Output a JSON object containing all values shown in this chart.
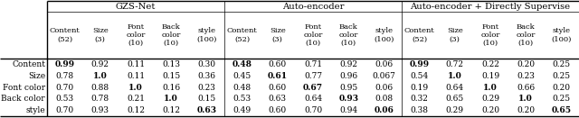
{
  "title_row": [
    "GZS-Net",
    "Auto-encoder",
    "Auto-encoder + Directly Supervise"
  ],
  "header_cols": [
    [
      "Content\n(52)",
      "Size\n(3)",
      "Font\ncolor\n(10)",
      "Back\ncolor\n(10)",
      "style\n(100)"
    ],
    [
      "Content\n(52)",
      "Size\n(3)",
      "Font\ncolor\n(10)",
      "Back\ncolor\n(10)",
      "style\n(100)"
    ],
    [
      "Content\n(52)",
      "Size\n(3)",
      "Font\ncolor\n(10)",
      "Back\ncolor\n(10)",
      "style\n(100)"
    ]
  ],
  "row_labels": [
    "Content",
    "Size",
    "Font color",
    "Back color",
    "style"
  ],
  "data": [
    [
      [
        "0.99",
        "0.92",
        "0.11",
        "0.13",
        "0.30"
      ],
      [
        "0.48",
        "0.60",
        "0.71",
        "0.92",
        "0.06"
      ],
      [
        "0.99",
        "0.72",
        "0.22",
        "0.20",
        "0.25"
      ]
    ],
    [
      [
        "0.78",
        "1.0",
        "0.11",
        "0.15",
        "0.36"
      ],
      [
        "0.45",
        "0.61",
        "0.77",
        "0.96",
        "0.067"
      ],
      [
        "0.54",
        "1.0",
        "0.19",
        "0.23",
        "0.25"
      ]
    ],
    [
      [
        "0.70",
        "0.88",
        "1.0",
        "0.16",
        "0.23"
      ],
      [
        "0.48",
        "0.60",
        "0.67",
        "0.95",
        "0.06"
      ],
      [
        "0.19",
        "0.64",
        "1.0",
        "0.66",
        "0.20"
      ]
    ],
    [
      [
        "0.53",
        "0.78",
        "0.21",
        "1.0",
        "0.15"
      ],
      [
        "0.53",
        "0.63",
        "0.64",
        "0.93",
        "0.08"
      ],
      [
        "0.32",
        "0.65",
        "0.29",
        "1.0",
        "0.25"
      ]
    ],
    [
      [
        "0.70",
        "0.93",
        "0.12",
        "0.12",
        "0.63"
      ],
      [
        "0.49",
        "0.60",
        "0.70",
        "0.94",
        "0.06"
      ],
      [
        "0.38",
        "0.29",
        "0.20",
        "0.20",
        "0.65"
      ]
    ]
  ],
  "bold": [
    [
      [
        "1",
        "0",
        "0",
        "0",
        "0"
      ],
      [
        "1",
        "0",
        "0",
        "0",
        "0"
      ],
      [
        "1",
        "0",
        "0",
        "0",
        "0"
      ]
    ],
    [
      [
        "0",
        "1",
        "0",
        "0",
        "0"
      ],
      [
        "0",
        "1",
        "0",
        "0",
        "0"
      ],
      [
        "0",
        "1",
        "0",
        "0",
        "0"
      ]
    ],
    [
      [
        "0",
        "0",
        "1",
        "0",
        "0"
      ],
      [
        "0",
        "0",
        "1",
        "0",
        "0"
      ],
      [
        "0",
        "0",
        "1",
        "0",
        "0"
      ]
    ],
    [
      [
        "0",
        "0",
        "0",
        "1",
        "0"
      ],
      [
        "0",
        "0",
        "0",
        "1",
        "0"
      ],
      [
        "0",
        "0",
        "0",
        "1",
        "0"
      ]
    ],
    [
      [
        "0",
        "0",
        "0",
        "0",
        "1"
      ],
      [
        "0",
        "0",
        "0",
        "0",
        "1"
      ],
      [
        "0",
        "0",
        "0",
        "0",
        "1"
      ]
    ]
  ],
  "fig_width": 6.4,
  "fig_height": 1.31,
  "dpi": 100,
  "background_color": "#ffffff",
  "fs_title": 7.2,
  "fs_header": 6.0,
  "fs_data": 6.5,
  "fs_rowlabel": 6.5
}
